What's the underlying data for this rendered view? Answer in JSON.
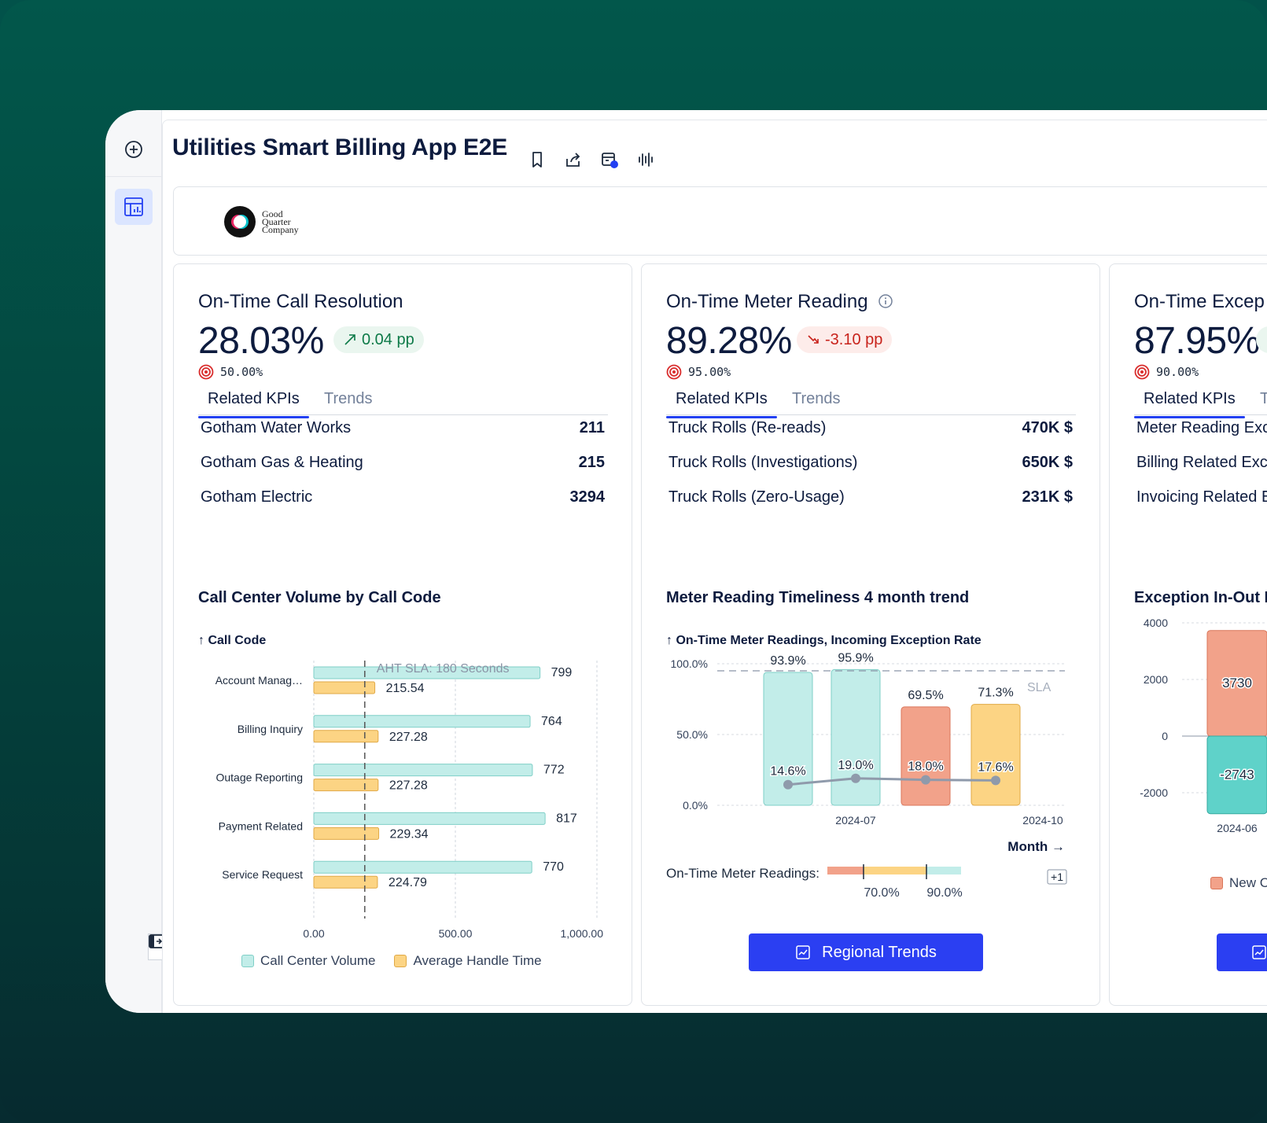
{
  "app": {
    "title": "Utilities Smart Billing App E2E"
  },
  "logo": {
    "line1": "Good",
    "line2": "Quarter",
    "line3": "Company"
  },
  "icons": [
    "add-circle-icon",
    "dashboard-icon",
    "bookmark-icon",
    "share-icon",
    "schedule-icon",
    "voice-wave-icon",
    "collapse-panel-icon",
    "info-icon",
    "target-icon",
    "trend-up-icon",
    "trend-down-icon",
    "chart-icon"
  ],
  "colors": {
    "accent": "#2340f2",
    "teal_fill": "#c2ede9",
    "orange_fill": "#fcd484",
    "salmon_fill": "#f2a28a",
    "teal_strong": "#5fd2c9",
    "positive": "#0d7a48",
    "negative": "#c8221b"
  },
  "cards": [
    {
      "title": "On-Time Call Resolution",
      "value": "28.03%",
      "delta": "0.04 pp",
      "delta_dir": "up",
      "target": "50.00%",
      "tabs": [
        "Related KPIs",
        "Trends"
      ],
      "active_tab": "Related KPIs",
      "kpis": [
        {
          "label": "Gotham Water Works",
          "value": "211"
        },
        {
          "label": "Gotham Gas & Heating",
          "value": "215"
        },
        {
          "label": "Gotham Electric",
          "value": "3294"
        }
      ],
      "chart_title": "Call Center Volume by Call Code",
      "axis_title": "↑ Call Code",
      "chart_data": {
        "type": "bar",
        "orientation": "horizontal",
        "categories": [
          "Account Manag…",
          "Billing Inquiry",
          "Outage Reporting",
          "Payment Related",
          "Service Request"
        ],
        "series": [
          {
            "name": "Call Center Volume",
            "values": [
              799,
              764,
              772,
              817,
              770
            ],
            "labels": [
              "799",
              "764",
              "772",
              "817",
              "770"
            ]
          },
          {
            "name": "Average Handle Time",
            "values": [
              215.54,
              227.28,
              227.28,
              229.34,
              224.79
            ],
            "labels": [
              "215.54",
              "227.28",
              "227.28",
              "229.34",
              "224.79"
            ]
          }
        ],
        "xlim": [
          0,
          1000
        ],
        "x_ticks": [
          "0.00",
          "500.00",
          "1,000.00"
        ],
        "reference_line": {
          "value": 180,
          "label": "AHT SLA: 180 Seconds"
        },
        "legend_position": "bottom"
      }
    },
    {
      "title": "On-Time Meter Reading",
      "value": "89.28%",
      "delta": "-3.10 pp",
      "delta_dir": "down",
      "target": "95.00%",
      "tabs": [
        "Related KPIs",
        "Trends"
      ],
      "active_tab": "Related KPIs",
      "kpis": [
        {
          "label": "Truck Rolls (Re-reads)",
          "value": "470K $"
        },
        {
          "label": "Truck Rolls (Investigations)",
          "value": "650K $"
        },
        {
          "label": "Truck Rolls (Zero-Usage)",
          "value": "231K $"
        }
      ],
      "chart_title": "Meter Reading Timeliness 4 month trend",
      "axis_title": "↑ On-Time Meter Readings, Incoming Exception Rate",
      "chart_data": {
        "type": "bar",
        "x_axis_label": "Month →",
        "x_tick_labels": [
          "2024-07",
          "2024-10"
        ],
        "ylim": [
          0,
          100
        ],
        "y_ticks": [
          "100.0%",
          "50.0%",
          "0.0%"
        ],
        "bars": {
          "name": "On-Time Meter Readings",
          "values": [
            93.9,
            95.9,
            69.5,
            71.3
          ],
          "labels": [
            "93.9%",
            "95.9%",
            "69.5%",
            "71.3%"
          ],
          "color_bands": [
            "teal",
            "teal",
            "salmon",
            "orange"
          ]
        },
        "line": {
          "name": "Incoming Exception Rate",
          "values": [
            14.6,
            19.0,
            18.0,
            17.6
          ],
          "labels": [
            "14.6%",
            "19.0%",
            "18.0%",
            "17.6%"
          ]
        },
        "reference_line": {
          "value": 95,
          "label": "SLA"
        },
        "color_scale": {
          "label": "On-Time Meter Readings:",
          "thresholds": [
            "70.0%",
            "90.0%"
          ],
          "more": "+1"
        }
      },
      "button": "Regional Trends"
    },
    {
      "title": "On-Time Excep",
      "value": "87.95%",
      "target": "90.00%",
      "tabs": [
        "Related KPIs",
        "T"
      ],
      "active_tab": "Related KPIs",
      "kpis": [
        {
          "label": "Meter Reading Exc"
        },
        {
          "label": "Billing Related Exc"
        },
        {
          "label": "Invoicing Related E"
        }
      ],
      "chart_title": "Exception In-Out F",
      "chart_data": {
        "type": "bar",
        "stacked": true,
        "categories": [
          "2024-06"
        ],
        "y_ticks": [
          "4000",
          "2000",
          "0",
          "-2000"
        ],
        "series": [
          {
            "values": [
              3730
            ],
            "labels": [
              "3730"
            ]
          },
          {
            "values": [
              -2743
            ],
            "labels": [
              "-2743"
            ]
          }
        ]
      },
      "legend_label": "New C"
    }
  ]
}
